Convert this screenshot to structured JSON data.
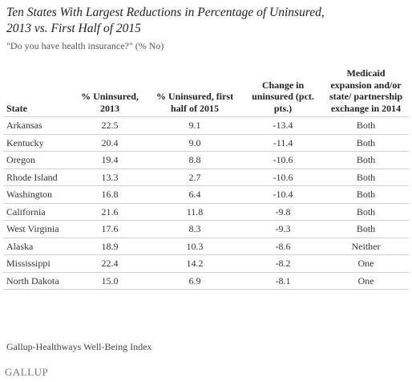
{
  "title": "Ten States With Largest Reductions in Percentage of Uninsured, 2013 vs. First Half of 2015",
  "subtitle": "\"Do you have health insurance?\" (% No)",
  "table": {
    "header": [
      "State",
      "% Uninsured, 2013",
      "% Uninsured, first half of 2015",
      "Change in uninsured (pct. pts.)",
      "Medicaid expansion and/or state/ partnership exchange in 2014"
    ],
    "rows": [
      [
        "Arkansas",
        "22.5",
        "9.1",
        "-13.4",
        "Both"
      ],
      [
        "Kentucky",
        "20.4",
        "9.0",
        "-11.4",
        "Both"
      ],
      [
        "Oregon",
        "19.4",
        "8.8",
        "-10.6",
        "Both"
      ],
      [
        "Rhode Island",
        "13.3",
        "2.7",
        "-10.6",
        "Both"
      ],
      [
        "Washington",
        "16.8",
        "6.4",
        "-10.4",
        "Both"
      ],
      [
        "California",
        "21.6",
        "11.8",
        "-9.8",
        "Both"
      ],
      [
        "West Virginia",
        "17.6",
        "8.3",
        "-9.3",
        "Both"
      ],
      [
        "Alaska",
        "18.9",
        "10.3",
        "-8.6",
        "Neither"
      ],
      [
        "Mississippi",
        "22.4",
        "14.2",
        "-8.2",
        "One"
      ],
      [
        "North Dakota",
        "15.0",
        "6.9",
        "-8.1",
        "One"
      ]
    ]
  },
  "source": "Gallup-Healthways Well-Being Index",
  "logo": "GALLUP"
}
